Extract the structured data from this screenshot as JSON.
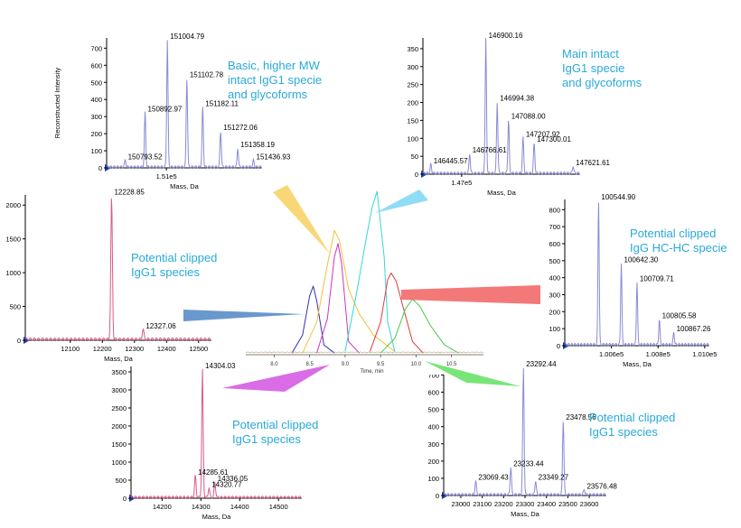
{
  "colors": {
    "accent_text": "#29a9d9",
    "spectrum_blue": "#8a8ad6",
    "spectrum_pink": "#d95b8e",
    "axis": "#000000",
    "axis_marker": "#1f3aa0"
  },
  "chart_data": [
    {
      "id": "center",
      "type": "line",
      "title": "",
      "xlabel": "Time, min",
      "ylabel": "",
      "xlim": [
        7.6,
        10.95
      ],
      "xticks": [
        "8.0",
        "8.5",
        "9.0",
        "9.5",
        "10.0",
        "10.5"
      ],
      "xtick_values": [
        8.0,
        8.5,
        9.0,
        9.5,
        10.0,
        10.5
      ],
      "series": [
        {
          "color": "#3030b0",
          "x": [
            8.25,
            8.4,
            8.5,
            8.55,
            8.6,
            8.7,
            8.85
          ],
          "y": [
            0.01,
            0.12,
            0.36,
            0.42,
            0.33,
            0.06,
            0.01
          ]
        },
        {
          "color": "#cc33cc",
          "x": [
            8.6,
            8.75,
            8.85,
            8.9,
            8.95,
            9.05,
            9.2
          ],
          "y": [
            0.01,
            0.22,
            0.6,
            0.68,
            0.56,
            0.08,
            0.01
          ]
        },
        {
          "color": "#f0c23a",
          "x": [
            8.4,
            8.6,
            8.75,
            8.85,
            8.92,
            9.05,
            9.2,
            9.4,
            9.7
          ],
          "y": [
            0.01,
            0.2,
            0.55,
            0.76,
            0.7,
            0.4,
            0.25,
            0.12,
            0.02
          ]
        },
        {
          "color": "#35d6d6",
          "x": [
            9.0,
            9.15,
            9.3,
            9.38,
            9.45,
            9.55,
            9.6,
            9.7
          ],
          "y": [
            0.02,
            0.35,
            0.72,
            0.9,
            1.0,
            0.6,
            0.2,
            0.02
          ]
        },
        {
          "color": "#e03a3a",
          "x": [
            9.35,
            9.5,
            9.6,
            9.65,
            9.72,
            9.8,
            9.95,
            10.1
          ],
          "y": [
            0.02,
            0.2,
            0.46,
            0.5,
            0.45,
            0.32,
            0.08,
            0.01
          ]
        },
        {
          "color": "#4cc94c",
          "x": [
            9.5,
            9.7,
            9.85,
            9.95,
            10.05,
            10.2,
            10.4,
            10.6
          ],
          "y": [
            0.01,
            0.1,
            0.28,
            0.34,
            0.3,
            0.18,
            0.06,
            0.01
          ]
        }
      ]
    },
    {
      "id": "tl",
      "type": "line",
      "xlabel": "Mass, Da",
      "ylabel": "Reconstructed Intensity",
      "xlim": [
        150700,
        151480
      ],
      "ylim": [
        0,
        760
      ],
      "yticks": [
        "0",
        "100",
        "200",
        "300",
        "400",
        "500",
        "600",
        "700"
      ],
      "ytick_values": [
        0,
        100,
        200,
        300,
        400,
        500,
        600,
        700
      ],
      "xticks": [
        "1.51e5"
      ],
      "xtick_values": [
        151000
      ],
      "color": "#8a8ad6",
      "peaks": [
        {
          "label": "150793.52",
          "x": 150793.52,
          "y": 40
        },
        {
          "label": "150892.97",
          "x": 150892.97,
          "y": 320
        },
        {
          "label": "151004.79",
          "x": 151004.79,
          "y": 745
        },
        {
          "label": "151102.78",
          "x": 151102.78,
          "y": 520
        },
        {
          "label": "151182.11",
          "x": 151182.11,
          "y": 350
        },
        {
          "label": "151272.06",
          "x": 151272.06,
          "y": 210
        },
        {
          "label": "151358.19",
          "x": 151358.19,
          "y": 110
        },
        {
          "label": "151436.93",
          "x": 151436.93,
          "y": 40
        }
      ]
    },
    {
      "id": "tr",
      "type": "line",
      "xlabel": "Mass, Da",
      "xlim": [
        146380,
        147680
      ],
      "ylim": [
        0,
        380
      ],
      "yticks": [
        "0",
        "50",
        "100",
        "150",
        "200",
        "250",
        "300",
        "350"
      ],
      "ytick_values": [
        0,
        50,
        100,
        150,
        200,
        250,
        300,
        350
      ],
      "xticks": [
        "1.47e5"
      ],
      "xtick_values": [
        146700
      ],
      "color": "#8a8ad6",
      "peaks": [
        {
          "label": "146445.57",
          "x": 146445.57,
          "y": 25
        },
        {
          "label": "146766.61",
          "x": 146766.61,
          "y": 55
        },
        {
          "label": "146900.16",
          "x": 146900.16,
          "y": 375
        },
        {
          "label": "146994.38",
          "x": 146994.38,
          "y": 200
        },
        {
          "label": "147088.00",
          "x": 147088.0,
          "y": 150
        },
        {
          "label": "147207.92",
          "x": 147207.92,
          "y": 100
        },
        {
          "label": "147300.01",
          "x": 147300.01,
          "y": 85
        },
        {
          "label": "147621.61",
          "x": 147621.61,
          "y": 20
        }
      ]
    },
    {
      "id": "ml",
      "type": "line",
      "xlabel": "Mass, Da",
      "xlim": [
        11960,
        12540
      ],
      "ylim": [
        0,
        2150
      ],
      "yticks": [
        "0",
        "500",
        "1000",
        "1500",
        "2000"
      ],
      "ytick_values": [
        0,
        500,
        1000,
        1500,
        2000
      ],
      "xticks": [
        "12100",
        "12200",
        "12300",
        "12400",
        "12500"
      ],
      "xtick_values": [
        12100,
        12200,
        12300,
        12400,
        12500
      ],
      "color": "#d95b8e",
      "peaks": [
        {
          "label": "12228.85",
          "x": 12228.85,
          "y": 2130
        },
        {
          "label": "12327.06",
          "x": 12327.06,
          "y": 150
        }
      ]
    },
    {
      "id": "mr",
      "type": "line",
      "xlabel": "Mass, Da",
      "xlim": [
        100400,
        101020
      ],
      "ylim": [
        0,
        860
      ],
      "yticks": [
        "0",
        "100",
        "200",
        "300",
        "400",
        "500",
        "600",
        "700",
        "800"
      ],
      "ytick_values": [
        0,
        100,
        200,
        300,
        400,
        500,
        600,
        700,
        800
      ],
      "xticks": [
        "1.006e5",
        "1.008e5",
        "1.010e5"
      ],
      "xtick_values": [
        100600,
        100800,
        101000
      ],
      "color": "#8a8ad6",
      "peaks": [
        {
          "label": "100544.90",
          "x": 100544.9,
          "y": 850
        },
        {
          "label": "100642.30",
          "x": 100642.3,
          "y": 480
        },
        {
          "label": "100709.71",
          "x": 100709.71,
          "y": 370
        },
        {
          "label": "100805.58",
          "x": 100805.58,
          "y": 150
        },
        {
          "label": "100867.26",
          "x": 100867.26,
          "y": 75
        }
      ]
    },
    {
      "id": "bl",
      "type": "line",
      "xlabel": "Mass, Da",
      "xlim": [
        14120,
        14560
      ],
      "ylim": [
        0,
        3650
      ],
      "yticks": [
        "0",
        "500",
        "1000",
        "1500",
        "2000",
        "2500",
        "3000",
        "3500"
      ],
      "ytick_values": [
        0,
        500,
        1000,
        1500,
        2000,
        2500,
        3000,
        3500
      ],
      "xticks": [
        "14200",
        "14300",
        "14400",
        "14500"
      ],
      "xtick_values": [
        14200,
        14300,
        14400,
        14500
      ],
      "color": "#d95b8e",
      "peaks": [
        {
          "label": "14285.61",
          "x": 14285.61,
          "y": 600
        },
        {
          "label": "14304.03",
          "x": 14304.03,
          "y": 3550
        },
        {
          "label": "14336.05",
          "x": 14336.05,
          "y": 420
        },
        {
          "label": "14320.77",
          "x": 14320.77,
          "y": 260
        }
      ]
    },
    {
      "id": "br",
      "type": "line",
      "xlabel": "Mass, Da",
      "xlim": [
        22920,
        23680
      ],
      "ylim": [
        0,
        760
      ],
      "yticks": [
        "0",
        "100",
        "200",
        "300",
        "400",
        "500",
        "600",
        "700"
      ],
      "ytick_values": [
        0,
        100,
        200,
        300,
        400,
        500,
        600,
        700
      ],
      "xticks": [
        "23000",
        "23100",
        "23200",
        "23300",
        "23400",
        "23500",
        "23600"
      ],
      "xtick_values": [
        23000,
        23100,
        23200,
        23300,
        23400,
        23500,
        23600
      ],
      "color": "#8a8ad6",
      "peaks": [
        {
          "label": "23069.43",
          "x": 23069.43,
          "y": 80
        },
        {
          "label": "23233.44",
          "x": 23233.44,
          "y": 160
        },
        {
          "label": "23292.44",
          "x": 23292.44,
          "y": 740
        },
        {
          "label": "23349.27",
          "x": 23349.27,
          "y": 80
        },
        {
          "label": "23478.56",
          "x": 23478.56,
          "y": 430
        },
        {
          "label": "23576.48",
          "x": 23576.48,
          "y": 30
        }
      ]
    }
  ],
  "annotations": {
    "tl": [
      "Basic, higher MW",
      "intact IgG1 specie",
      "and glycoforms"
    ],
    "tr": [
      "Main intact",
      "IgG1 specie",
      "and glycoforms"
    ],
    "ml": [
      "Potential clipped",
      "IgG1 species"
    ],
    "mr": [
      "Potential clipped",
      "IgG HC-HC specie"
    ],
    "bl": [
      "Potential clipped",
      "IgG1 species"
    ],
    "br": [
      "Potential clipped",
      "IgG1 species"
    ]
  }
}
